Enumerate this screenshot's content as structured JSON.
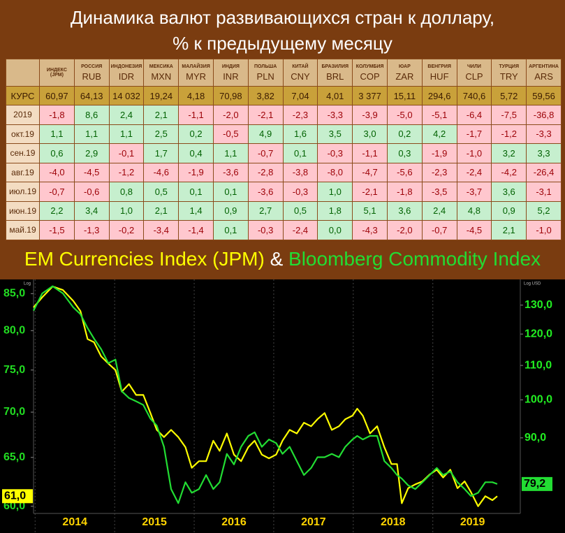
{
  "title_lines": [
    "Динамика валют развивающихся стран к доллару,",
    "% к предыдущему месяцу"
  ],
  "table": {
    "header_top": [
      "ИНДЕКС",
      "РОССИЯ",
      "ИНДОНЕЗИЯ",
      "МЕКСИКА",
      "МАЛАЙЗИЯ",
      "ИНДИЯ",
      "ПОЛЬША",
      "КИТАЙ",
      "БРАЗИЛИЯ",
      "КОЛУМБИЯ",
      "ЮАР",
      "ВЕНГРИЯ",
      "ЧИЛИ",
      "ТУРЦИЯ",
      "АРГЕНТИНА"
    ],
    "header_bottom": [
      "(JPM)",
      "RUB",
      "IDR",
      "MXN",
      "MYR",
      "INR",
      "PLN",
      "CNY",
      "BRL",
      "COP",
      "ZAR",
      "HUF",
      "CLP",
      "TRY",
      "ARS"
    ],
    "rows": [
      [
        "КУРС",
        "60,97",
        "64,13",
        "14 032",
        "19,24",
        "4,18",
        "70,98",
        "3,82",
        "7,04",
        "4,01",
        "3 377",
        "15,11",
        "294,6",
        "740,6",
        "5,72",
        "59,56"
      ],
      [
        "2019",
        "-1,8",
        "8,6",
        "2,4",
        "2,1",
        "-1,1",
        "-2,0",
        "-2,1",
        "-2,3",
        "-3,3",
        "-3,9",
        "-5,0",
        "-5,1",
        "-6,4",
        "-7,5",
        "-36,8"
      ],
      [
        "окт.19",
        "1,1",
        "1,1",
        "1,1",
        "2,5",
        "0,2",
        "-0,5",
        "4,9",
        "1,6",
        "3,5",
        "3,0",
        "0,2",
        "4,2",
        "-1,7",
        "-1,2",
        "-3,3"
      ],
      [
        "сен.19",
        "0,6",
        "2,9",
        "-0,1",
        "1,7",
        "0,4",
        "1,1",
        "-0,7",
        "0,1",
        "-0,3",
        "-1,1",
        "0,3",
        "-1,9",
        "-1,0",
        "3,2",
        "3,3"
      ],
      [
        "авг.19",
        "-4,0",
        "-4,5",
        "-1,2",
        "-4,6",
        "-1,9",
        "-3,6",
        "-2,8",
        "-3,8",
        "-8,0",
        "-4,7",
        "-5,6",
        "-2,3",
        "-2,4",
        "-4,2",
        "-26,4"
      ],
      [
        "июл.19",
        "-0,7",
        "-0,6",
        "0,8",
        "0,5",
        "0,1",
        "0,1",
        "-3,6",
        "-0,3",
        "1,0",
        "-2,1",
        "-1,8",
        "-3,5",
        "-3,7",
        "3,6",
        "-3,1"
      ],
      [
        "июн.19",
        "2,2",
        "3,4",
        "1,0",
        "2,1",
        "1,4",
        "0,9",
        "2,7",
        "0,5",
        "1,8",
        "5,1",
        "3,6",
        "2,4",
        "4,8",
        "0,9",
        "5,2"
      ],
      [
        "май.19",
        "-1,5",
        "-1,3",
        "-0,2",
        "-3,4",
        "-1,4",
        "0,1",
        "-0,3",
        "-2,4",
        "0,0",
        "-4,3",
        "-2,0",
        "-0,7",
        "-4,5",
        "2,1",
        "-1,0"
      ]
    ]
  },
  "chart_data": {
    "type": "line",
    "title_joiner": "&",
    "ylabel": "Log",
    "y2label": "Log USD",
    "ylog": true,
    "x": [
      2013.98,
      2014.09,
      2014.22,
      2014.35,
      2014.48,
      2014.57,
      2014.66,
      2014.74,
      2014.83,
      2014.92,
      2015.01,
      2015.09,
      2015.18,
      2015.27,
      2015.36,
      2015.45,
      2015.53,
      2015.62,
      2015.71,
      2015.8,
      2015.89,
      2015.97,
      2016.06,
      2016.15,
      2016.24,
      2016.32,
      2016.41,
      2016.5,
      2016.59,
      2016.68,
      2016.76,
      2016.85,
      2016.94,
      2017.03,
      2017.11,
      2017.2,
      2017.29,
      2017.38,
      2017.47,
      2017.55,
      2017.64,
      2017.73,
      2017.82,
      2017.9,
      2017.99,
      2018.05,
      2018.12,
      2018.21,
      2018.3,
      2018.39,
      2018.48,
      2018.55,
      2018.61,
      2018.69,
      2018.78,
      2018.87,
      2018.96,
      2019.05,
      2019.13,
      2019.22,
      2019.31,
      2019.4,
      2019.48,
      2019.57,
      2019.66,
      2019.75,
      2019.81
    ],
    "series": [
      {
        "name": "EM Currencies Index (JPM)",
        "color": "#ffff00",
        "axis": "y",
        "last_label": "61,0",
        "values": [
          83.1,
          84.5,
          86.0,
          85.5,
          84.0,
          82.6,
          78.9,
          78.5,
          76.7,
          75.8,
          75.0,
          72.4,
          73.3,
          72.0,
          72.0,
          69.9,
          68.0,
          67.2,
          68.0,
          67.2,
          66.1,
          63.9,
          64.6,
          64.6,
          66.8,
          65.7,
          67.6,
          65.3,
          64.6,
          66.1,
          66.8,
          65.3,
          64.9,
          65.3,
          66.8,
          68.0,
          67.6,
          68.8,
          68.4,
          69.2,
          69.9,
          68.0,
          68.4,
          69.2,
          69.6,
          70.4,
          69.6,
          67.6,
          68.4,
          66.1,
          64.3,
          64.3,
          60.3,
          61.8,
          62.2,
          62.5,
          63.2,
          63.7,
          62.9,
          63.7,
          61.8,
          62.5,
          61.4,
          60.0,
          61.0,
          60.6,
          61.0
        ]
      },
      {
        "name": "Bloomberg Commodity Index",
        "color": "#22dd33",
        "axis": "y2",
        "last_label": "79,2",
        "values": [
          128.0,
          134.3,
          137.0,
          134.3,
          129.2,
          126.8,
          122.0,
          118.5,
          115.1,
          110.7,
          111.8,
          102.4,
          100.5,
          99.6,
          98.6,
          94.9,
          93.1,
          87.8,
          78.1,
          75.1,
          79.6,
          77.3,
          78.1,
          81.2,
          78.1,
          79.6,
          86.1,
          83.6,
          87.8,
          90.5,
          91.4,
          87.8,
          89.6,
          88.7,
          86.1,
          87.8,
          84.4,
          81.2,
          82.8,
          85.3,
          85.3,
          86.1,
          85.3,
          87.8,
          89.6,
          90.5,
          89.6,
          90.5,
          90.5,
          84.4,
          82.8,
          81.2,
          80.4,
          78.9,
          78.1,
          79.6,
          81.2,
          82.8,
          81.2,
          82.0,
          79.6,
          78.1,
          76.6,
          77.3,
          79.6,
          79.6,
          79.2
        ]
      }
    ],
    "xlim": [
      2013.98,
      2020.1
    ],
    "xticks": [
      2014,
      2015,
      2016,
      2017,
      2018,
      2019
    ],
    "ylim": [
      59.3,
      87.0
    ],
    "yticks": [
      {
        "value": 60,
        "label": "60,0"
      },
      {
        "value": 65,
        "label": "65,0"
      },
      {
        "value": 70,
        "label": "70,0"
      },
      {
        "value": 75,
        "label": "75,0"
      },
      {
        "value": 80,
        "label": "80,0"
      },
      {
        "value": 85,
        "label": "85,0"
      }
    ],
    "y2lim": [
      73.0,
      139.6
    ],
    "y2ticks": [
      {
        "value": 90,
        "label": "90,0"
      },
      {
        "value": 100,
        "label": "100,0"
      },
      {
        "value": 110,
        "label": "110,0"
      },
      {
        "value": 120,
        "label": "120,0"
      },
      {
        "value": 130,
        "label": "130,0"
      }
    ],
    "grid": true
  }
}
